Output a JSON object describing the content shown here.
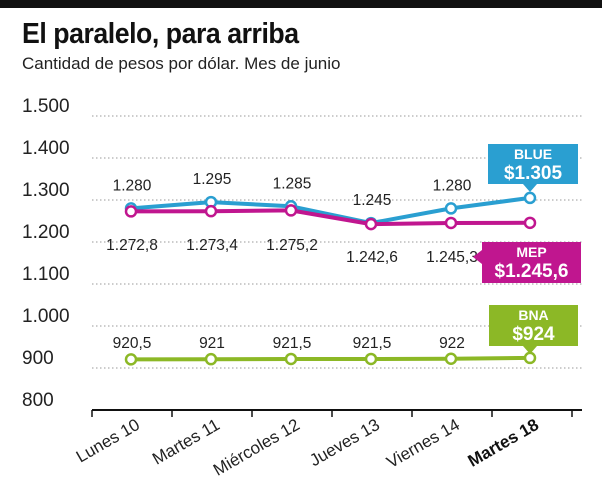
{
  "header": {
    "title": "El paralelo, para arriba",
    "subtitle": "Cantidad de pesos por dólar. Mes de junio"
  },
  "chart_data": {
    "type": "line",
    "title": "El paralelo, para arriba",
    "subtitle": "Cantidad de pesos por dólar. Mes de junio",
    "xlabel": "",
    "ylabel": "",
    "ylim": [
      800,
      1500
    ],
    "yticks": [
      800,
      900,
      1000,
      1100,
      1200,
      1300,
      1400,
      1500
    ],
    "ytick_labels": [
      "800",
      "900",
      "1.000",
      "1.100",
      "1.200",
      "1.300",
      "1.400",
      "1.500"
    ],
    "grid": "horizontal-dotted",
    "categories": [
      "Lunes 10",
      "Martes 11",
      "Miércoles 12",
      "Jueves 13",
      "Viernes 14",
      "Martes 18"
    ],
    "highlight_category": "Martes 18",
    "series": [
      {
        "name": "BLUE",
        "color": "#2a9fd1",
        "values": [
          1280,
          1295,
          1285,
          1245,
          1280,
          1305
        ],
        "point_labels": [
          "1.280",
          "1.295",
          "1.285",
          "1.245",
          "1.280",
          null
        ],
        "callout": "$1.305"
      },
      {
        "name": "MEP",
        "color": "#c0168f",
        "values": [
          1272.8,
          1273.4,
          1275.2,
          1242.6,
          1245.3,
          1245.6
        ],
        "point_labels": [
          "1.272,8",
          "1.273,4",
          "1.275,2",
          "1.242,6",
          "1.245,3",
          null
        ],
        "callout": "$1.245,6"
      },
      {
        "name": "BNA",
        "color": "#8cb826",
        "values": [
          920.5,
          921,
          921.5,
          921.5,
          922,
          924
        ],
        "point_labels": [
          "920,5",
          "921",
          "921,5",
          "921,5",
          "922",
          null
        ],
        "callout": "$924"
      }
    ]
  }
}
